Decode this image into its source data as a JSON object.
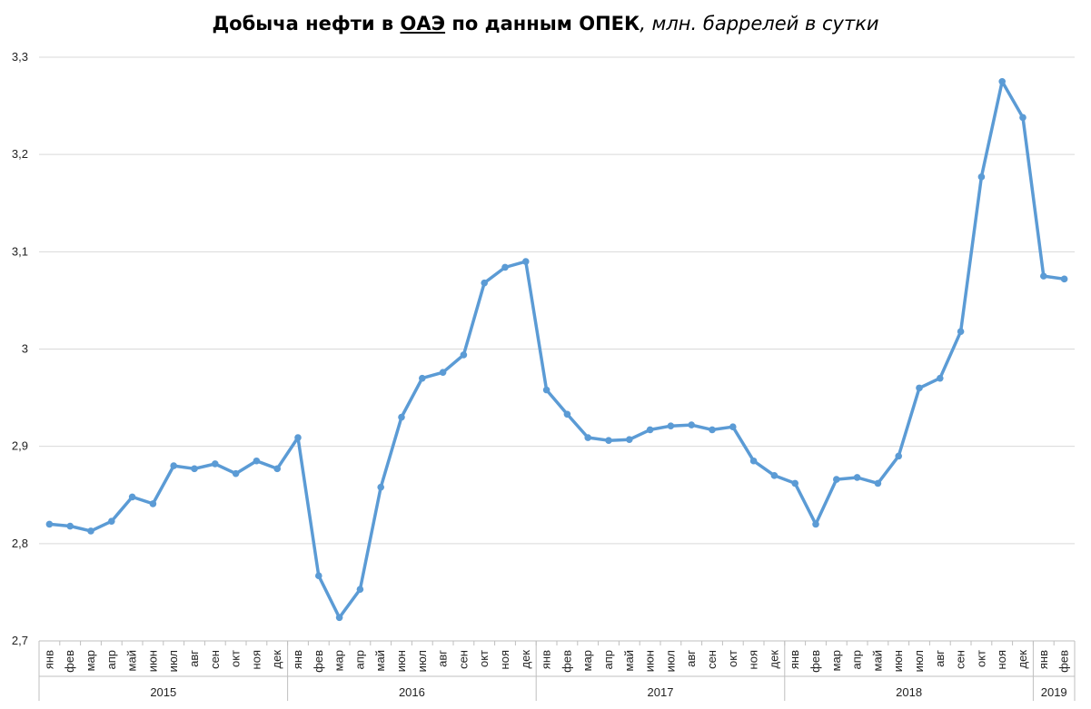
{
  "chart_data": {
    "type": "line",
    "title": {
      "part1": "Добыча нефти в ",
      "part2": "ОАЭ",
      "part3": " по данным ОПЕК",
      "part4": ", млн. баррелей в сутки"
    },
    "ylim": [
      2.7,
      3.3
    ],
    "yticks": [
      "2,7",
      "2,8",
      "2,9",
      "3",
      "3,1",
      "3,2",
      "3,3"
    ],
    "grid": true,
    "legend": "none",
    "line_color": "#5b9bd5",
    "years": [
      {
        "label": "2015",
        "months": 12
      },
      {
        "label": "2016",
        "months": 12
      },
      {
        "label": "2017",
        "months": 12
      },
      {
        "label": "2018",
        "months": 12
      },
      {
        "label": "2019",
        "months": 2
      }
    ],
    "x": [
      "янв",
      "фев",
      "мар",
      "апр",
      "май",
      "июн",
      "июл",
      "авг",
      "сен",
      "окт",
      "ноя",
      "дек",
      "янв",
      "фев",
      "мар",
      "апр",
      "май",
      "июн",
      "июл",
      "авг",
      "сен",
      "окт",
      "ноя",
      "дек",
      "янв",
      "фев",
      "мар",
      "апр",
      "май",
      "июн",
      "июл",
      "авг",
      "сен",
      "окт",
      "ноя",
      "дек",
      "янв",
      "фев",
      "мар",
      "апр",
      "май",
      "июн",
      "июл",
      "авг",
      "сен",
      "окт",
      "ноя",
      "дек",
      "янв",
      "фев"
    ],
    "values": [
      2.82,
      2.818,
      2.813,
      2.823,
      2.848,
      2.841,
      2.88,
      2.877,
      2.882,
      2.872,
      2.885,
      2.877,
      2.909,
      2.767,
      2.724,
      2.753,
      2.858,
      2.93,
      2.97,
      2.976,
      2.994,
      3.068,
      3.084,
      3.09,
      2.958,
      2.933,
      2.909,
      2.906,
      2.907,
      2.917,
      2.921,
      2.922,
      2.917,
      2.92,
      2.885,
      2.87,
      2.862,
      2.82,
      2.866,
      2.868,
      2.862,
      2.89,
      2.96,
      2.97,
      3.018,
      3.177,
      3.275,
      3.238,
      3.075,
      3.072
    ]
  }
}
